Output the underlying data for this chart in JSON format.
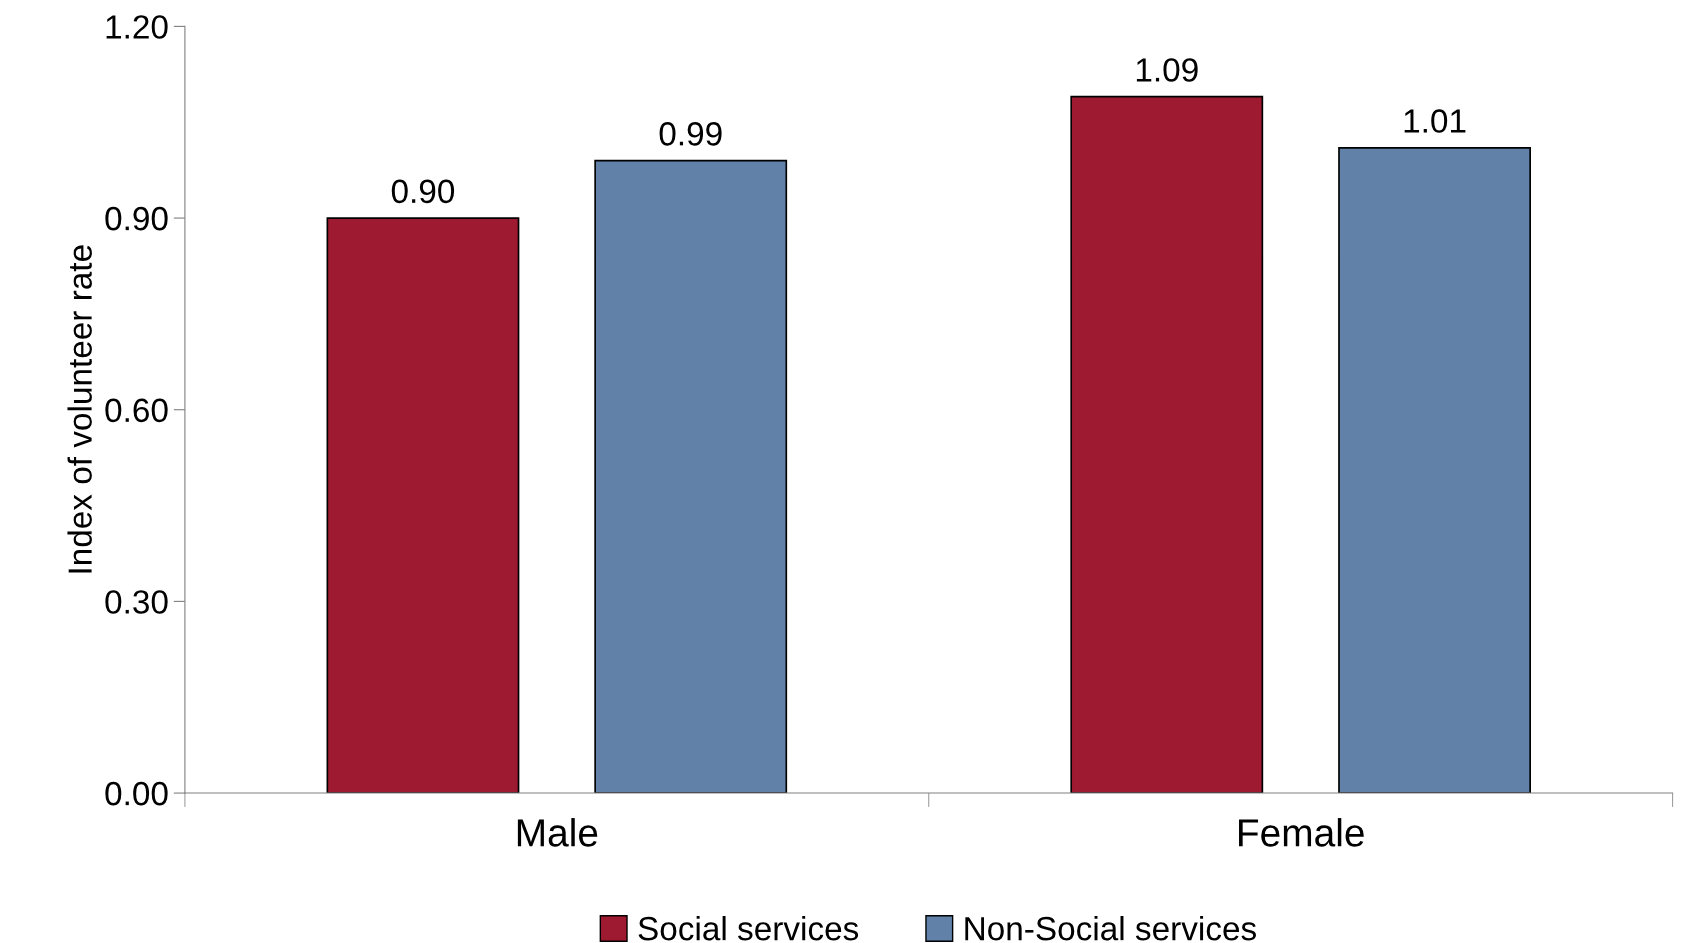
{
  "chart_data": {
    "type": "bar",
    "ylabel": "Index of volunteer rate",
    "categories": [
      "Male",
      "Female"
    ],
    "series": [
      {
        "name": "Social services",
        "color": "#9e1a31",
        "values": [
          0.9,
          1.09
        ]
      },
      {
        "name": "Non-Social services",
        "color": "#6181a8",
        "values": [
          0.99,
          1.01
        ]
      }
    ],
    "ylim": [
      0,
      1.2
    ],
    "yticks": [
      {
        "value": 0,
        "label": "0.00"
      },
      {
        "value": 0.3,
        "label": "0.30"
      },
      {
        "value": 0.6,
        "label": "0.60"
      },
      {
        "value": 0.9,
        "label": "0.90"
      },
      {
        "value": 1.2,
        "label": "1.20"
      }
    ],
    "value_labels": [
      [
        "0.90",
        "1.09"
      ],
      [
        "0.99",
        "1.01"
      ]
    ],
    "legend": "bottom",
    "grid": false
  }
}
